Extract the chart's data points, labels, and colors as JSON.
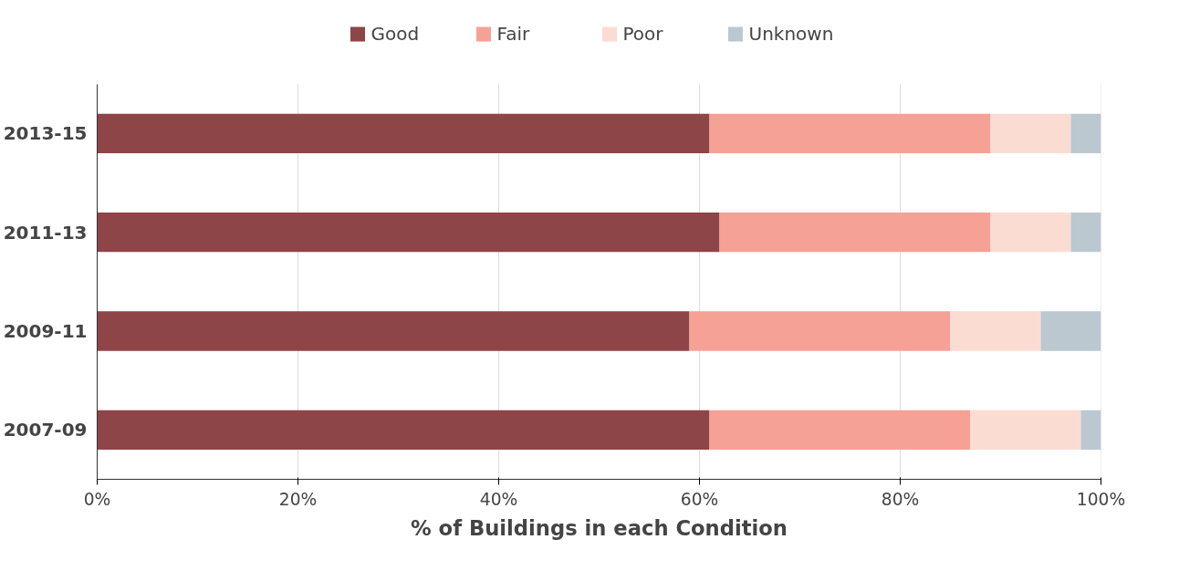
{
  "chart_data": {
    "type": "bar",
    "orientation": "horizontal",
    "stacked": true,
    "xlabel": "% of Buildings in each Condition",
    "categories": [
      "2013-15",
      "2011-13",
      "2009-11",
      "2007-09"
    ],
    "series": [
      {
        "name": "Good",
        "color": "#8e4547",
        "values": [
          61,
          62,
          59,
          61
        ]
      },
      {
        "name": "Fair",
        "color": "#f5a196",
        "values": [
          28,
          27,
          26,
          26
        ]
      },
      {
        "name": "Poor",
        "color": "#fbdcd3",
        "values": [
          8,
          8,
          9,
          11
        ]
      },
      {
        "name": "Unknown",
        "color": "#bcc8d0",
        "values": [
          3,
          3,
          6,
          2
        ]
      }
    ],
    "xlim": [
      0,
      100
    ],
    "xticks": [
      {
        "value": 0,
        "label": "0%"
      },
      {
        "value": 20,
        "label": "20%"
      },
      {
        "value": 40,
        "label": "40%"
      },
      {
        "value": 60,
        "label": "60%"
      },
      {
        "value": 80,
        "label": "80%"
      },
      {
        "value": 100,
        "label": "100%"
      }
    ],
    "grid": "x",
    "legend": "top"
  }
}
